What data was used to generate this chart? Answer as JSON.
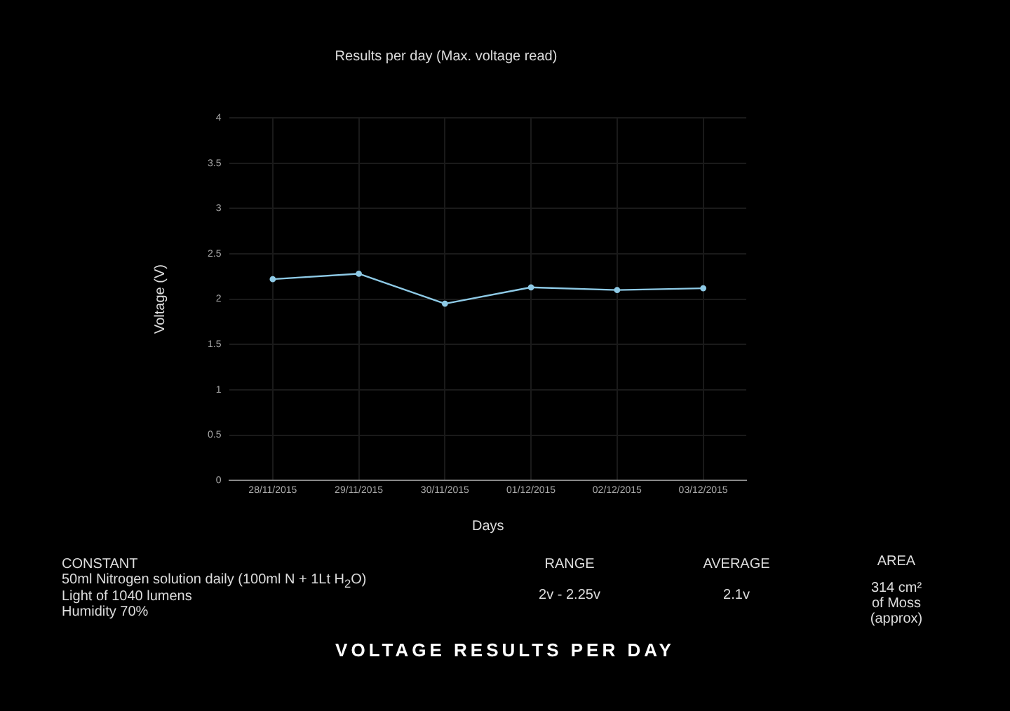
{
  "chart_data": {
    "type": "line",
    "title": "Results per day (Max. voltage read)",
    "xlabel": "Days",
    "ylabel": "Voltage (V)",
    "categories": [
      "28/11/2015",
      "29/11/2015",
      "30/11/2015",
      "01/12/2015",
      "02/12/2015",
      "03/12/2015"
    ],
    "series": [
      {
        "color": "#8ecae6",
        "values": [
          2.22,
          2.28,
          1.95,
          2.13,
          2.1,
          2.12
        ]
      }
    ],
    "ylim": [
      0,
      4
    ],
    "yticks": [
      0,
      0.5,
      1,
      1.5,
      2,
      2.5,
      3,
      3.5,
      4
    ],
    "grid": true,
    "legend": false,
    "marker": "circle",
    "line_style": "solid",
    "annotations": [
      "CONSTANT",
      "50ml Nitrogen solution daily (100ml N + 1Lt H$_{2}$O)",
      "Light of 1040 lumens",
      "Humidity 70%",
      "RANGE",
      "2v - 2.25v",
      "AVERAGE",
      "2.1v",
      "AREA",
      "314 cm²\nof Moss\n(approx)",
      "VOLTAGE RESULTS PER DAY"
    ]
  }
}
